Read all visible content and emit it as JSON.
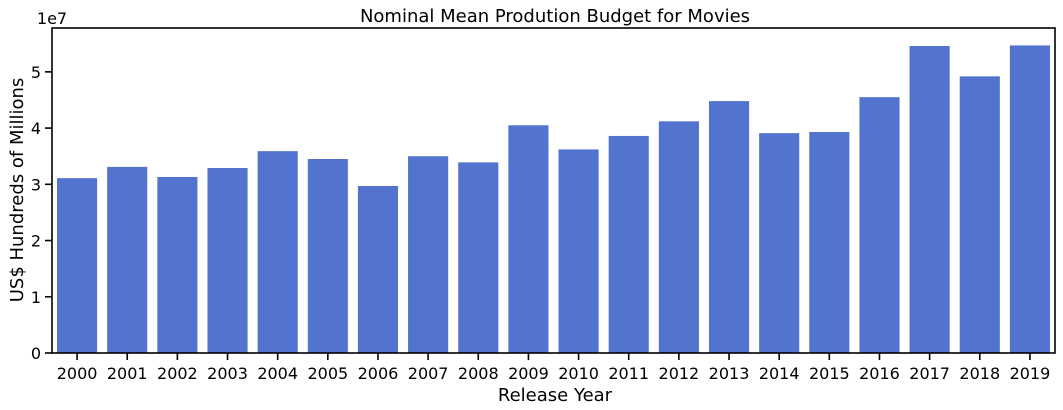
{
  "chart_data": {
    "type": "bar",
    "title": "Nominal Mean Prodution Budget for Movies",
    "xlabel": "Release Year",
    "ylabel": "US$ Hundreds of Millions",
    "y_scale_label": "1e7",
    "categories": [
      "2000",
      "2001",
      "2002",
      "2003",
      "2004",
      "2005",
      "2006",
      "2007",
      "2008",
      "2009",
      "2010",
      "2011",
      "2012",
      "2013",
      "2014",
      "2015",
      "2016",
      "2017",
      "2018",
      "2019"
    ],
    "values": [
      3.11,
      3.31,
      3.13,
      3.29,
      3.59,
      3.45,
      2.97,
      3.5,
      3.39,
      4.05,
      3.62,
      3.86,
      4.12,
      4.48,
      3.91,
      3.93,
      4.55,
      5.46,
      4.92,
      5.47
    ],
    "value_multiplier": 10000000,
    "ylim": [
      0,
      5.78
    ],
    "yticks": [
      0,
      1,
      2,
      3,
      4,
      5
    ],
    "grid": false,
    "bar_color": "#5274cf"
  }
}
